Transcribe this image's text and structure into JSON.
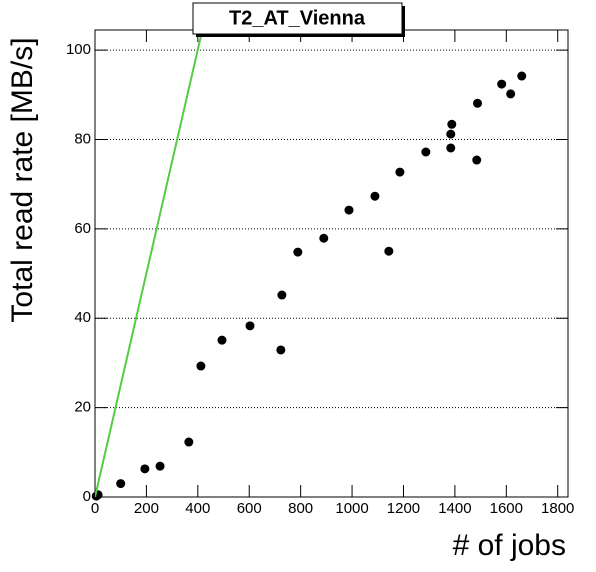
{
  "chart_data": {
    "type": "scatter",
    "title": "T2_AT_Vienna",
    "x_label": "# of jobs",
    "y_label": "Total read rate [MB/s]",
    "xlim": [
      0,
      1840
    ],
    "ylim": [
      0,
      104.5
    ],
    "xticks": [
      0,
      200,
      400,
      600,
      800,
      1000,
      1200,
      1400,
      1600,
      1800
    ],
    "yticks": [
      0,
      20,
      40,
      60,
      80,
      100
    ],
    "grid": true,
    "series": [
      {
        "color": "#000000",
        "x": [
          5,
          12,
          100,
          194,
          253,
          365,
          412,
          494,
          603,
          723,
          727,
          789,
          890,
          988,
          1089,
          1143,
          1186,
          1287,
          1384,
          1384,
          1388,
          1485,
          1488,
          1582,
          1617,
          1660
        ],
        "values": [
          0.2,
          0.5,
          3,
          6.3,
          6.9,
          12.3,
          29.3,
          35.1,
          38.3,
          32.9,
          45.2,
          54.8,
          57.9,
          64.2,
          67.3,
          55,
          72.7,
          77.2,
          78.1,
          81.2,
          83.4,
          75.4,
          88.1,
          92.4,
          90.2,
          94.2
        ]
      },
      {
        "color": "#55cc44",
        "line": true,
        "x": [
          0,
          413
        ],
        "values": [
          0,
          103.4
        ]
      }
    ]
  }
}
